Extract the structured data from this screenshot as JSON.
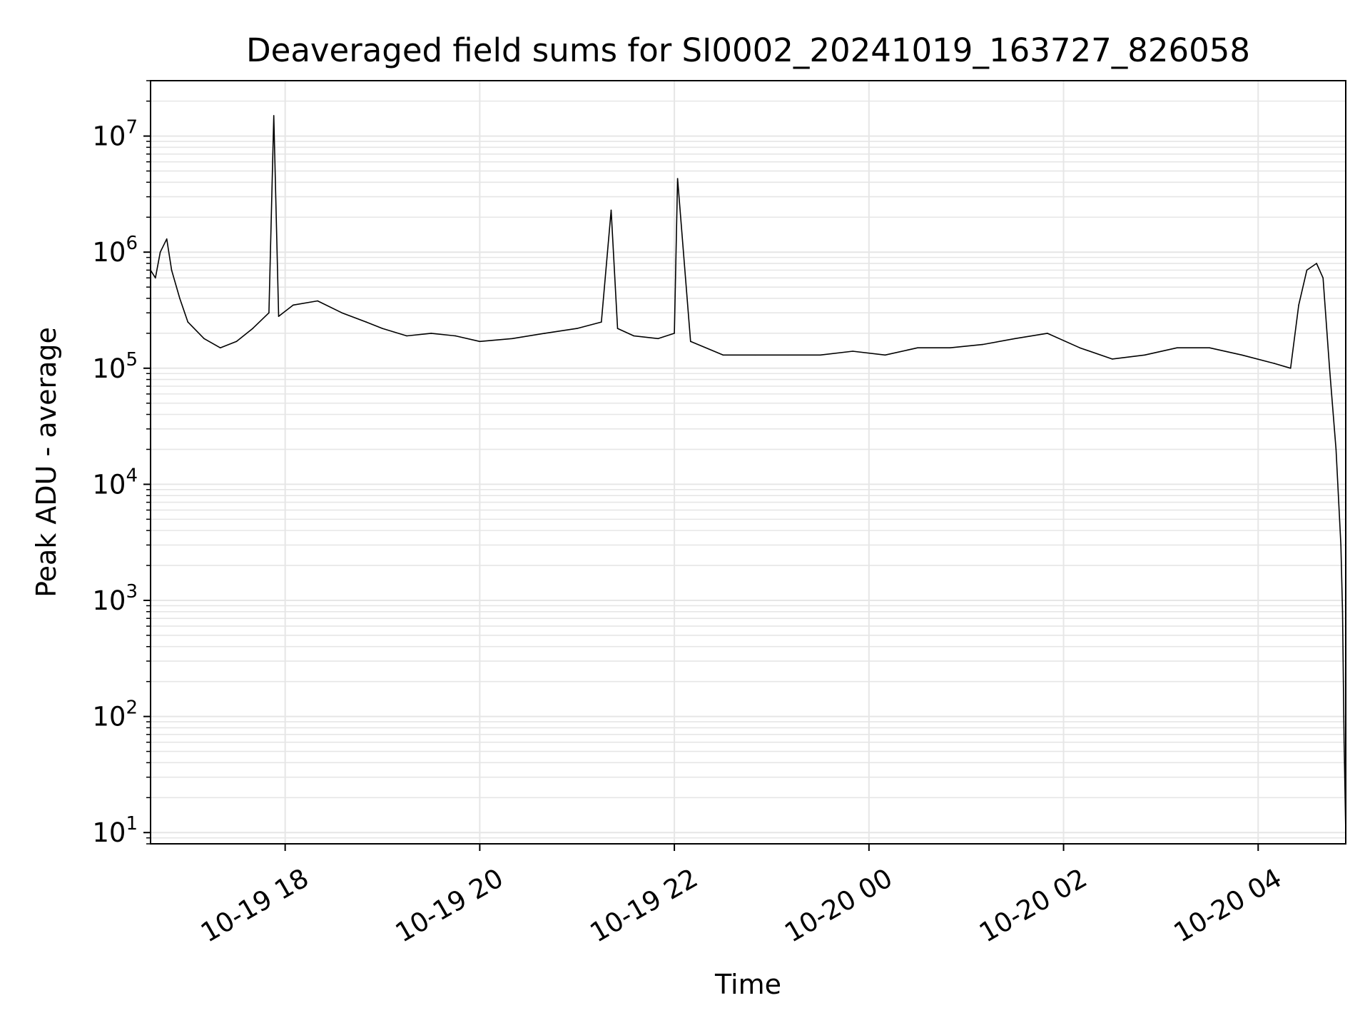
{
  "chart_data": {
    "type": "line",
    "title": "Deaveraged field sums for SI0002_20241019_163727_826058",
    "xlabel": "Time",
    "ylabel": "Peak ADU - average",
    "yscale": "log",
    "ylim": [
      8,
      30000000
    ],
    "xlim": [
      "2024-10-19 16:37",
      "2024-10-20 04:54"
    ],
    "grid": true,
    "line_color": "#000000",
    "grid_color": "#e6e6e6",
    "x_ticks": [
      {
        "label": "10-19 18",
        "t": "2024-10-19 18:00"
      },
      {
        "label": "10-19 20",
        "t": "2024-10-19 20:00"
      },
      {
        "label": "10-19 22",
        "t": "2024-10-19 22:00"
      },
      {
        "label": "10-20 00",
        "t": "2024-10-20 00:00"
      },
      {
        "label": "10-20 02",
        "t": "2024-10-20 02:00"
      },
      {
        "label": "10-20 04",
        "t": "2024-10-20 04:00"
      }
    ],
    "y_ticks": [
      {
        "base": "10",
        "exp": "1",
        "value": 10
      },
      {
        "base": "10",
        "exp": "2",
        "value": 100
      },
      {
        "base": "10",
        "exp": "3",
        "value": 1000
      },
      {
        "base": "10",
        "exp": "4",
        "value": 10000
      },
      {
        "base": "10",
        "exp": "5",
        "value": 100000
      },
      {
        "base": "10",
        "exp": "6",
        "value": 1000000
      },
      {
        "base": "10",
        "exp": "7",
        "value": 10000000
      }
    ],
    "series": [
      {
        "x": [
          "2024-10-19 16:37",
          "2024-10-19 16:40",
          "2024-10-19 16:43",
          "2024-10-19 16:47",
          "2024-10-19 16:50",
          "2024-10-19 16:55",
          "2024-10-19 17:00",
          "2024-10-19 17:10",
          "2024-10-19 17:20",
          "2024-10-19 17:30",
          "2024-10-19 17:40",
          "2024-10-19 17:50",
          "2024-10-19 17:53",
          "2024-10-19 17:56",
          "2024-10-19 18:05",
          "2024-10-19 18:20",
          "2024-10-19 18:35",
          "2024-10-19 18:50",
          "2024-10-19 19:00",
          "2024-10-19 19:15",
          "2024-10-19 19:30",
          "2024-10-19 19:45",
          "2024-10-19 20:00",
          "2024-10-19 20:20",
          "2024-10-19 20:40",
          "2024-10-19 21:00",
          "2024-10-19 21:15",
          "2024-10-19 21:21",
          "2024-10-19 21:25",
          "2024-10-19 21:35",
          "2024-10-19 21:50",
          "2024-10-19 22:00",
          "2024-10-19 22:02",
          "2024-10-19 22:10",
          "2024-10-19 22:30",
          "2024-10-19 22:50",
          "2024-10-19 23:10",
          "2024-10-19 23:30",
          "2024-10-19 23:50",
          "2024-10-20 00:10",
          "2024-10-20 00:30",
          "2024-10-20 00:50",
          "2024-10-20 01:10",
          "2024-10-20 01:30",
          "2024-10-20 01:50",
          "2024-10-20 02:10",
          "2024-10-20 02:30",
          "2024-10-20 02:50",
          "2024-10-20 03:10",
          "2024-10-20 03:30",
          "2024-10-20 03:50",
          "2024-10-20 04:10",
          "2024-10-20 04:20",
          "2024-10-20 04:25",
          "2024-10-20 04:30",
          "2024-10-20 04:36",
          "2024-10-20 04:40",
          "2024-10-20 04:44",
          "2024-10-20 04:48",
          "2024-10-20 04:51",
          "2024-10-20 04:52",
          "2024-10-20 04:53",
          "2024-10-20 04:54"
        ],
        "y": [
          700000,
          600000,
          1000000,
          1300000,
          700000,
          400000,
          250000,
          180000,
          150000,
          170000,
          220000,
          300000,
          15000000,
          280000,
          350000,
          380000,
          300000,
          250000,
          220000,
          190000,
          200000,
          190000,
          170000,
          180000,
          200000,
          220000,
          250000,
          2300000,
          220000,
          190000,
          180000,
          200000,
          4300000,
          170000,
          130000,
          130000,
          130000,
          130000,
          140000,
          130000,
          150000,
          150000,
          160000,
          180000,
          200000,
          150000,
          120000,
          130000,
          150000,
          150000,
          130000,
          110000,
          100000,
          350000,
          700000,
          800000,
          600000,
          100000,
          20000,
          3000,
          800,
          60,
          10
        ]
      }
    ]
  }
}
